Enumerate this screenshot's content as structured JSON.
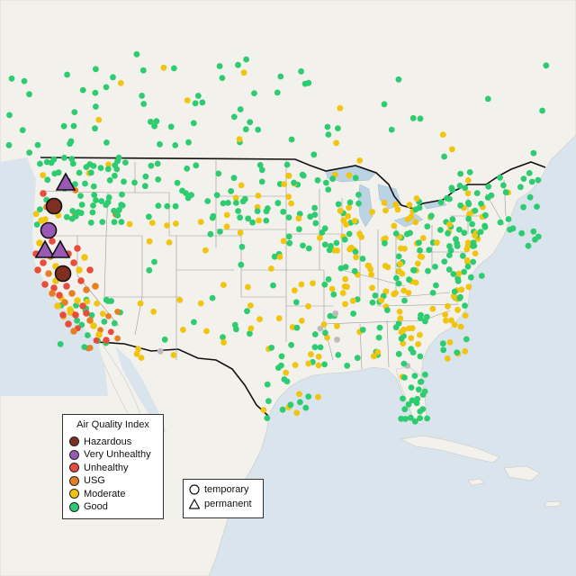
{
  "legend": {
    "title": "Air Quality Index",
    "categories": [
      {
        "label": "Hazardous",
        "color": "#7e2f1f"
      },
      {
        "label": "Very Unhealthy",
        "color": "#9b59b6"
      },
      {
        "label": "Unhealthy",
        "color": "#e74c3c"
      },
      {
        "label": "USG",
        "color": "#e67e22"
      },
      {
        "label": "Moderate",
        "color": "#f1c40f"
      },
      {
        "label": "Good",
        "color": "#2ecc71"
      }
    ]
  },
  "monitor_types": [
    {
      "label": "temporary",
      "shape": "circle-icon"
    },
    {
      "label": "permanent",
      "shape": "triangle-icon"
    }
  ],
  "colors": {
    "land": "#f3f1ec",
    "ocean": "#d9e4ec",
    "lake": "#bcd3e3",
    "state_border": "#9a9a9a",
    "country_border": "#111111",
    "no_data": "#bbbbbb"
  }
}
